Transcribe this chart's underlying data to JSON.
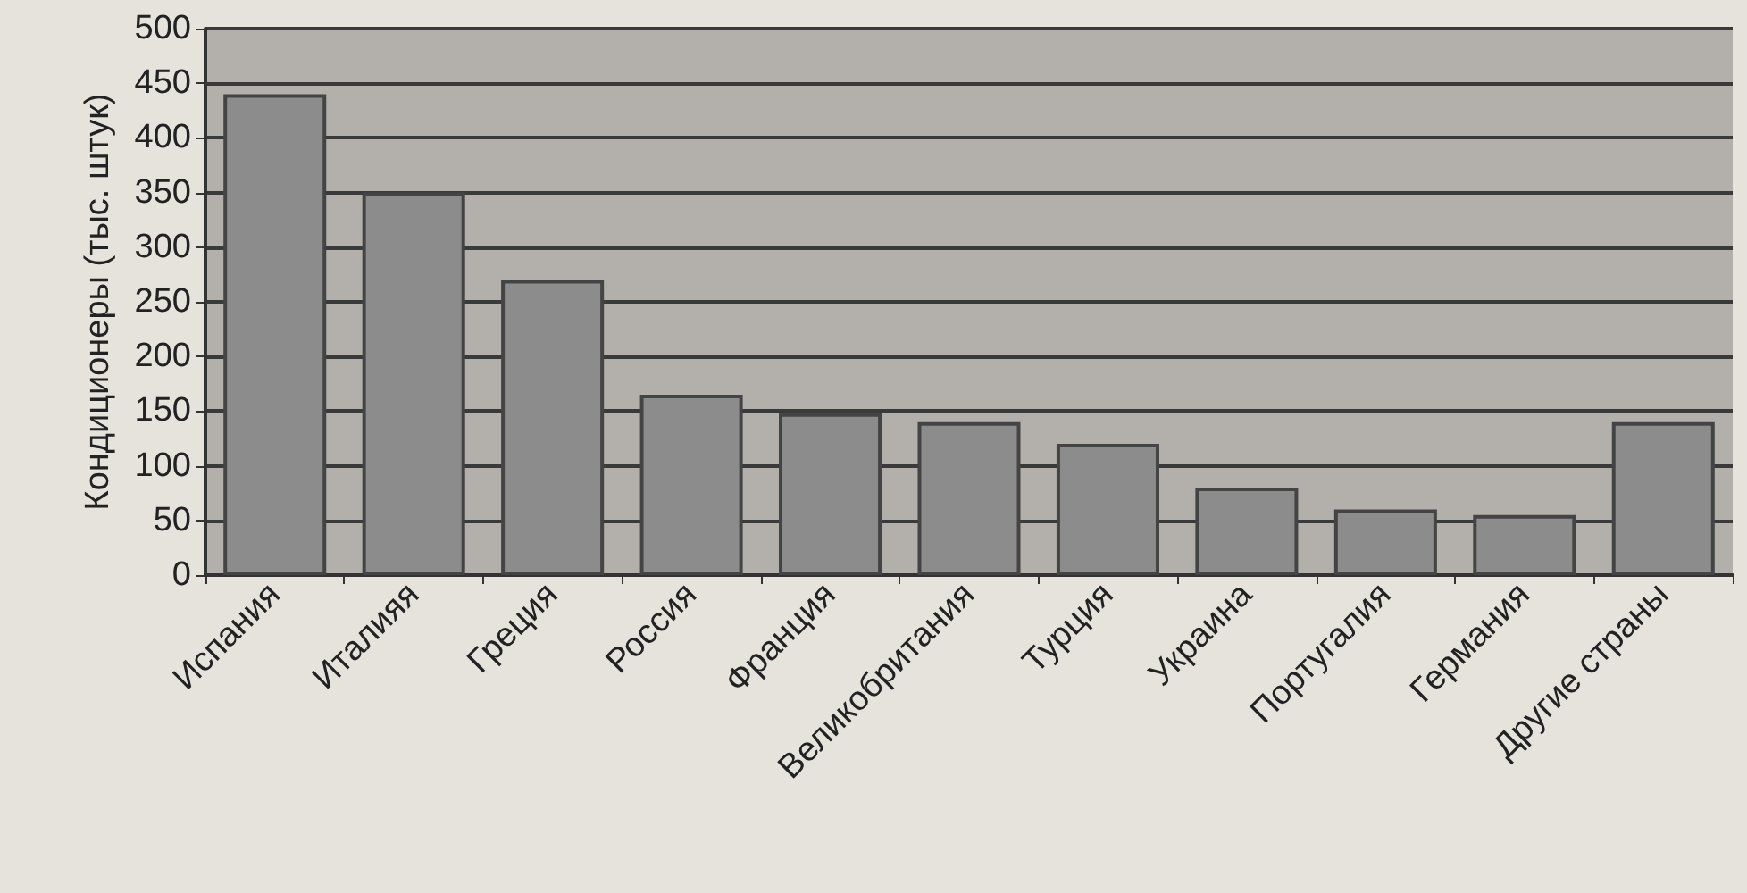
{
  "chart_data": {
    "type": "bar",
    "ylabel": "Кондиционеры (тыс. штук)",
    "categories": [
      "Испания",
      "Италияя",
      "Греция",
      "Россия",
      "Франция",
      "Великобритания",
      "Турция",
      "Украина",
      "Португалия",
      "Германия",
      "Другие страны"
    ],
    "values": [
      440,
      350,
      270,
      165,
      148,
      140,
      120,
      80,
      60,
      55,
      140
    ],
    "color": "#8c8c8c",
    "ylim": [
      0,
      500
    ],
    "yticks": [
      0,
      50,
      100,
      150,
      200,
      250,
      300,
      350,
      400,
      450,
      500
    ],
    "grid": "y"
  }
}
